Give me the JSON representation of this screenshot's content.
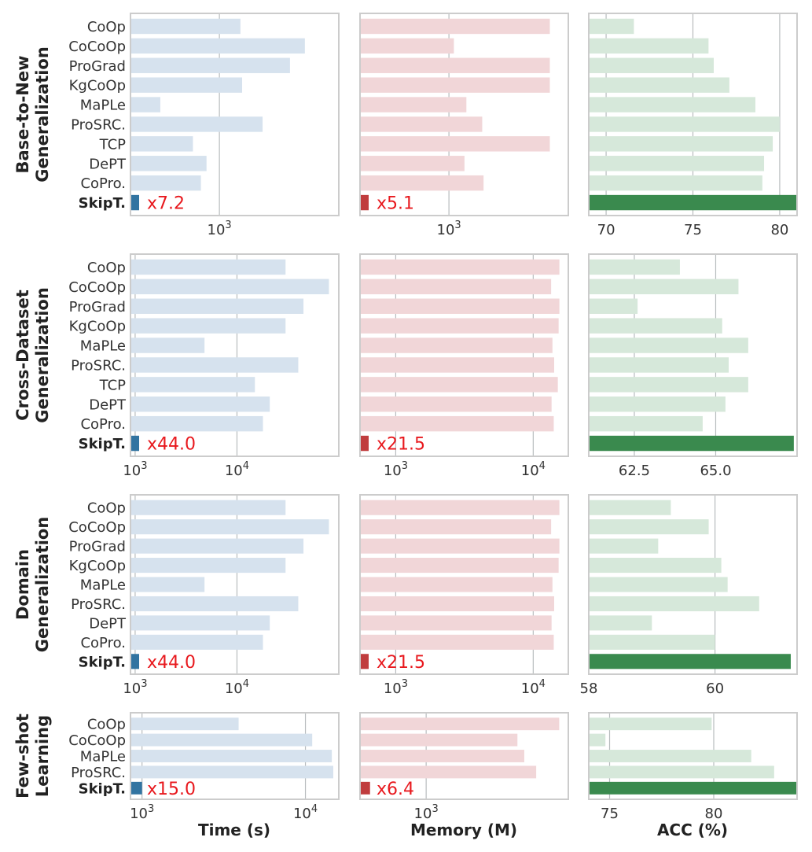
{
  "chart_data": [
    {
      "row_label": [
        "Base-to-New",
        "Generalization"
      ],
      "categories": [
        "CoOp",
        "CoCoOp",
        "ProGrad",
        "KgCoOp",
        "MaPLe",
        "ProSRC.",
        "TCP",
        "DePT",
        "CoPro.",
        "SkipT."
      ],
      "panels": [
        {
          "type": "bar",
          "metric": "Time",
          "scale": "log",
          "xlim": [
            180,
            10000
          ],
          "ticks": [
            {
              "value": 1000,
              "base": "10",
              "exp": "3"
            }
          ],
          "values": [
            1500,
            5200,
            3900,
            1550,
            320,
            2300,
            600,
            780,
            700,
            200
          ],
          "speedup": "x7.2"
        },
        {
          "type": "bar",
          "metric": "Memory",
          "scale": "log",
          "xlim": [
            180,
            10000
          ],
          "ticks": [
            {
              "value": 1000,
              "base": "10",
              "exp": "3"
            }
          ],
          "values": [
            7000,
            1100,
            7000,
            7000,
            1400,
            1900,
            7000,
            1350,
            1950,
            200
          ],
          "speedup": "x5.1"
        },
        {
          "type": "bar",
          "metric": "ACC",
          "scale": "linear",
          "xlim": [
            69,
            81
          ],
          "ticks": [
            {
              "value": 70,
              "label": "70"
            },
            {
              "value": 75,
              "label": "75"
            },
            {
              "value": 80,
              "label": "80"
            }
          ],
          "values": [
            71.6,
            75.9,
            76.2,
            77.1,
            78.6,
            80.0,
            79.6,
            79.1,
            79.0,
            81.1
          ]
        }
      ]
    },
    {
      "row_label": [
        "Cross-Dataset",
        "Generalization"
      ],
      "categories": [
        "CoOp",
        "CoCoOp",
        "ProGrad",
        "KgCoOp",
        "MaPLe",
        "ProSRC.",
        "TCP",
        "DePT",
        "CoPro.",
        "SkipT."
      ],
      "panels": [
        {
          "type": "bar",
          "metric": "Time",
          "scale": "log",
          "xlim": [
            900,
            100000
          ],
          "ticks": [
            {
              "value": 1000,
              "base": "10",
              "exp": "3"
            },
            {
              "value": 10000,
              "base": "10",
              "exp": "4"
            }
          ],
          "values": [
            30000,
            80000,
            45000,
            30000,
            4800,
            40000,
            15000,
            21000,
            18000,
            1050
          ],
          "speedup": "x44.0"
        },
        {
          "type": "bar",
          "metric": "Memory",
          "scale": "log",
          "xlim": [
            550,
            18000
          ],
          "ticks": [
            {
              "value": 1000,
              "base": "10",
              "exp": "3"
            },
            {
              "value": 10000,
              "base": "10",
              "exp": "4"
            }
          ],
          "values": [
            15500,
            13500,
            15500,
            15300,
            13800,
            14200,
            15100,
            13600,
            14100,
            600
          ],
          "speedup": "x21.5"
        },
        {
          "type": "bar",
          "metric": "ACC",
          "scale": "linear",
          "xlim": [
            61.1,
            67.5
          ],
          "ticks": [
            {
              "value": 62.5,
              "label": "62.5"
            },
            {
              "value": 65.0,
              "label": "65.0"
            }
          ],
          "values": [
            63.9,
            65.7,
            62.6,
            65.2,
            66.0,
            65.4,
            66.0,
            65.3,
            64.6,
            67.4
          ]
        }
      ]
    },
    {
      "row_label": [
        "Domain",
        "Generalization"
      ],
      "categories": [
        "CoOp",
        "CoCoOp",
        "ProGrad",
        "KgCoOp",
        "MaPLe",
        "ProSRC.",
        "DePT",
        "CoPro.",
        "SkipT."
      ],
      "panels": [
        {
          "type": "bar",
          "metric": "Time",
          "scale": "log",
          "xlim": [
            900,
            100000
          ],
          "ticks": [
            {
              "value": 1000,
              "base": "10",
              "exp": "3"
            },
            {
              "value": 10000,
              "base": "10",
              "exp": "4"
            }
          ],
          "values": [
            30000,
            80000,
            45000,
            30000,
            4800,
            40000,
            21000,
            18000,
            1050
          ],
          "speedup": "x44.0"
        },
        {
          "type": "bar",
          "metric": "Memory",
          "scale": "log",
          "xlim": [
            550,
            18000
          ],
          "ticks": [
            {
              "value": 1000,
              "base": "10",
              "exp": "3"
            },
            {
              "value": 10000,
              "base": "10",
              "exp": "4"
            }
          ],
          "values": [
            15500,
            13500,
            15500,
            15300,
            13800,
            14200,
            13600,
            14100,
            600
          ],
          "speedup": "x21.5"
        },
        {
          "type": "bar",
          "metric": "ACC",
          "scale": "linear",
          "xlim": [
            58,
            61.3
          ],
          "ticks": [
            {
              "value": 58,
              "label": "58"
            },
            {
              "value": 60,
              "label": "60"
            }
          ],
          "values": [
            59.3,
            59.9,
            59.1,
            60.1,
            60.2,
            60.7,
            59.0,
            60.0,
            61.2
          ]
        }
      ]
    },
    {
      "row_label": [
        "Few-shot",
        "Learning"
      ],
      "categories": [
        "CoOp",
        "CoCoOp",
        "MaPLe",
        "ProSRC.",
        "SkipT."
      ],
      "panels": [
        {
          "type": "bar",
          "metric": "Time",
          "scale": "log",
          "xlim": [
            850,
            16000
          ],
          "ticks": [
            {
              "value": 1000,
              "base": "10",
              "exp": "3"
            },
            {
              "value": 10000,
              "base": "10",
              "exp": "4"
            }
          ],
          "values": [
            3900,
            11000,
            14500,
            14800,
            1000
          ],
          "speedup": "x15.0"
        },
        {
          "type": "bar",
          "metric": "Memory",
          "scale": "log",
          "xlim": [
            380,
            8000
          ],
          "ticks": [
            {
              "value": 1000,
              "base": "10",
              "exp": "3"
            }
          ],
          "values": [
            7000,
            3800,
            4200,
            5000,
            440
          ],
          "speedup": "x6.4"
        },
        {
          "type": "bar",
          "metric": "ACC",
          "scale": "linear",
          "xlim": [
            74,
            84
          ],
          "ticks": [
            {
              "value": 75,
              "label": "75"
            },
            {
              "value": 80,
              "label": "80"
            }
          ],
          "values": [
            79.9,
            74.8,
            81.8,
            82.9,
            84.0
          ]
        }
      ]
    }
  ],
  "axis_labels": [
    "Time (s)",
    "Memory (M)",
    "ACC (%)"
  ],
  "colors": {
    "time_faded": "#d6e2ee",
    "time_highlight": "#3274a1",
    "memory_faded": "#f1d6d8",
    "memory_highlight": "#c03d3e",
    "acc_faded": "#d6e8da",
    "acc_highlight": "#3a8a4e",
    "speedup_text": "#e8191e",
    "frame": "#cccccc",
    "grid": "#b8bcbe"
  }
}
